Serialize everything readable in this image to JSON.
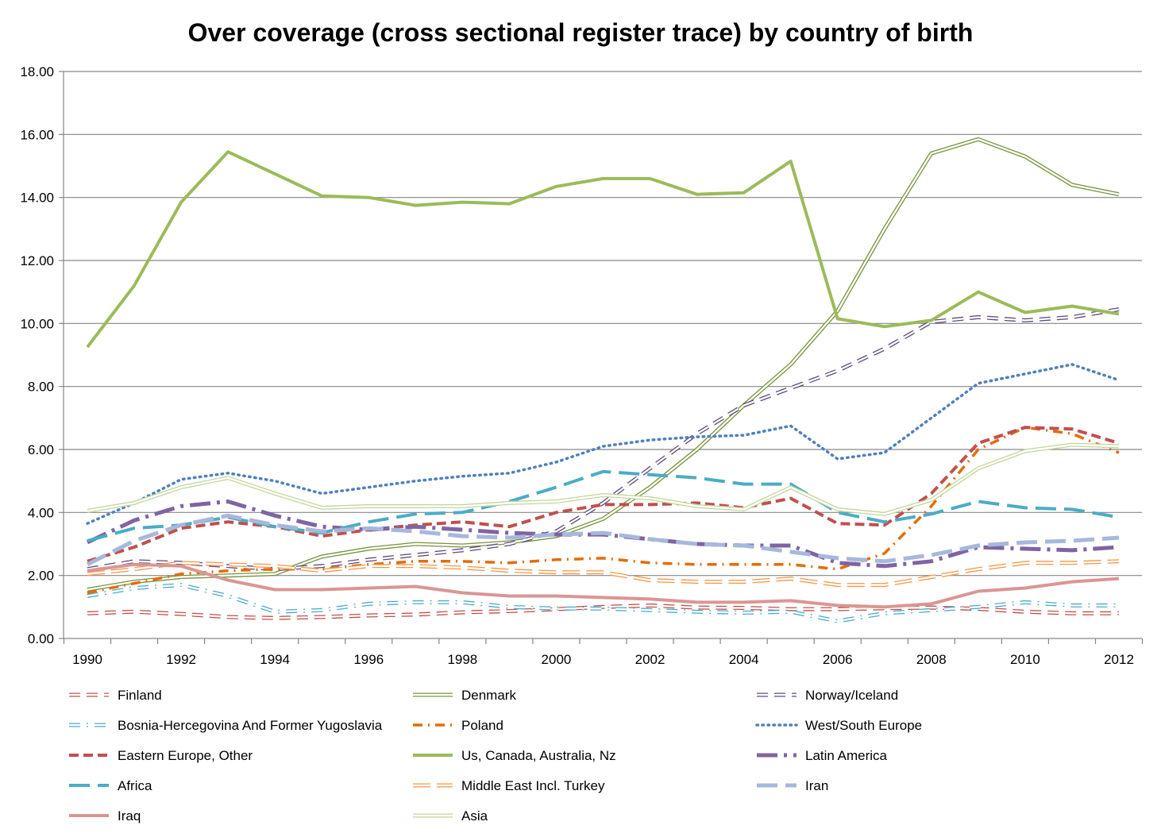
{
  "chart_data": {
    "type": "line",
    "title": "Over coverage (cross sectional register trace) by country of birth",
    "xlabel": "",
    "ylabel": "",
    "x": [
      1990,
      1991,
      1992,
      1993,
      1994,
      1995,
      1996,
      1997,
      1998,
      1999,
      2000,
      2001,
      2002,
      2003,
      2004,
      2005,
      2006,
      2007,
      2008,
      2009,
      2010,
      2011,
      2012
    ],
    "x_tick_labels": [
      "1990",
      "1992",
      "1994",
      "1996",
      "1998",
      "2000",
      "2002",
      "2004",
      "2006",
      "2008",
      "2010",
      "2012"
    ],
    "ylim": [
      0,
      18
    ],
    "y_tick_labels": [
      "0.00",
      "2.00",
      "4.00",
      "6.00",
      "8.00",
      "10.00",
      "12.00",
      "14.00",
      "16.00",
      "18.00"
    ],
    "grid": "horizontal",
    "legend_position": "bottom",
    "series": [
      {
        "name": "Finland",
        "color": "#c0504d",
        "style": "double-dash",
        "values": [
          0.8,
          0.85,
          0.78,
          0.68,
          0.65,
          0.68,
          0.73,
          0.76,
          0.83,
          0.87,
          0.93,
          1.0,
          1.05,
          0.98,
          0.97,
          0.93,
          0.93,
          0.96,
          0.98,
          0.94,
          0.85,
          0.8,
          0.8
        ]
      },
      {
        "name": "Denmark",
        "color": "#77933c",
        "style": "double",
        "values": [
          1.55,
          1.8,
          1.95,
          2.0,
          2.05,
          2.6,
          2.85,
          3.0,
          2.95,
          3.05,
          3.25,
          3.8,
          4.8,
          6.0,
          7.4,
          8.7,
          10.4,
          13.0,
          15.4,
          15.85,
          15.3,
          14.4,
          14.1
        ]
      },
      {
        "name": "Norway/Iceland",
        "color": "#604a7b",
        "style": "double-dash",
        "values": [
          2.2,
          2.45,
          2.4,
          2.3,
          2.2,
          2.3,
          2.5,
          2.65,
          2.8,
          3.0,
          3.4,
          4.3,
          5.4,
          6.5,
          7.4,
          7.95,
          8.5,
          9.2,
          10.05,
          10.2,
          10.1,
          10.2,
          10.45
        ]
      },
      {
        "name": "Bosnia-Hercegovina And Former Yugoslavia",
        "color": "#4bacc6",
        "style": "double-dashdot",
        "values": [
          1.35,
          1.6,
          1.7,
          1.35,
          0.85,
          0.9,
          1.1,
          1.15,
          1.15,
          1.0,
          0.95,
          0.95,
          0.9,
          0.85,
          0.82,
          0.85,
          0.55,
          0.8,
          0.9,
          1.0,
          1.15,
          1.05,
          1.05
        ]
      },
      {
        "name": "Poland",
        "color": "#e46c0a",
        "style": "dashdot",
        "values": [
          1.45,
          1.75,
          2.05,
          2.15,
          2.2,
          2.2,
          2.35,
          2.45,
          2.45,
          2.4,
          2.5,
          2.55,
          2.4,
          2.35,
          2.35,
          2.35,
          2.2,
          2.7,
          4.2,
          6.0,
          6.7,
          6.5,
          5.9
        ]
      },
      {
        "name": "West/South Europe",
        "color": "#4f81bd",
        "style": "dotted",
        "values": [
          3.65,
          4.3,
          5.05,
          5.25,
          5.0,
          4.6,
          4.8,
          5.0,
          5.15,
          5.25,
          5.6,
          6.1,
          6.3,
          6.4,
          6.45,
          6.75,
          5.7,
          5.9,
          7.0,
          8.1,
          8.4,
          8.7,
          8.2
        ]
      },
      {
        "name": "Eastern Europe, Other",
        "color": "#c0504d",
        "style": "dashed",
        "values": [
          2.45,
          2.9,
          3.5,
          3.7,
          3.55,
          3.25,
          3.45,
          3.6,
          3.7,
          3.55,
          4.0,
          4.25,
          4.25,
          4.3,
          4.15,
          4.45,
          3.65,
          3.6,
          4.6,
          6.2,
          6.7,
          6.65,
          6.2
        ]
      },
      {
        "name": "Us, Canada, Australia, Nz",
        "color": "#9bbb59",
        "style": "solid-thick",
        "values": [
          9.25,
          11.2,
          13.85,
          15.45,
          14.75,
          14.05,
          14.0,
          13.75,
          13.85,
          13.8,
          14.35,
          14.6,
          14.6,
          14.1,
          14.15,
          15.15,
          10.15,
          9.9,
          10.1,
          11.0,
          10.35,
          10.55,
          10.3
        ]
      },
      {
        "name": "Latin America",
        "color": "#8064a2",
        "style": "dashdot-thick",
        "values": [
          3.05,
          3.75,
          4.2,
          4.35,
          3.9,
          3.55,
          3.45,
          3.55,
          3.45,
          3.35,
          3.3,
          3.3,
          3.15,
          3.0,
          2.95,
          2.95,
          2.4,
          2.3,
          2.45,
          2.9,
          2.85,
          2.8,
          2.9
        ]
      },
      {
        "name": "Africa",
        "color": "#4bacc6",
        "style": "longdash",
        "values": [
          3.1,
          3.5,
          3.6,
          3.85,
          3.55,
          3.35,
          3.7,
          3.95,
          4.0,
          4.35,
          4.8,
          5.3,
          5.2,
          5.1,
          4.9,
          4.9,
          4.0,
          3.7,
          3.95,
          4.35,
          4.15,
          4.1,
          3.85
        ]
      },
      {
        "name": "Middle East Incl. Turkey",
        "color": "#f79646",
        "style": "double-longdash",
        "values": [
          2.05,
          2.2,
          2.4,
          2.35,
          2.3,
          2.15,
          2.3,
          2.3,
          2.25,
          2.15,
          2.1,
          2.1,
          1.85,
          1.8,
          1.8,
          1.9,
          1.7,
          1.7,
          1.95,
          2.2,
          2.4,
          2.4,
          2.45
        ]
      },
      {
        "name": "Iran",
        "color": "#a6b8db",
        "style": "longdash-thick",
        "values": [
          2.35,
          3.1,
          3.6,
          3.9,
          3.6,
          3.4,
          3.5,
          3.4,
          3.25,
          3.2,
          3.3,
          3.35,
          3.15,
          3.0,
          2.95,
          2.75,
          2.55,
          2.45,
          2.65,
          2.95,
          3.05,
          3.1,
          3.2
        ]
      },
      {
        "name": "Iraq",
        "color": "#d99694",
        "style": "solid-thick",
        "values": [
          2.15,
          2.35,
          2.3,
          1.85,
          1.55,
          1.55,
          1.6,
          1.65,
          1.45,
          1.35,
          1.35,
          1.3,
          1.25,
          1.15,
          1.15,
          1.2,
          1.05,
          1.0,
          1.1,
          1.5,
          1.6,
          1.8,
          1.9
        ]
      },
      {
        "name": "Asia",
        "color": "#c3d69b",
        "style": "double",
        "values": [
          4.05,
          4.3,
          4.8,
          5.1,
          4.6,
          4.15,
          4.2,
          4.2,
          4.2,
          4.3,
          4.35,
          4.55,
          4.45,
          4.2,
          4.1,
          4.8,
          4.1,
          3.95,
          4.4,
          5.4,
          5.95,
          6.15,
          6.1
        ]
      }
    ]
  }
}
